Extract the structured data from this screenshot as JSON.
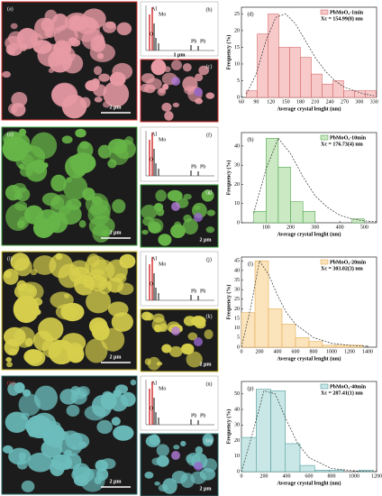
{
  "panels": [
    {
      "image_label": "(a)",
      "image_scale": "2 μm",
      "eds_label": "(b)",
      "eds_peaks": [
        "Al",
        "Mo",
        "O",
        "Pb",
        "Pb"
      ],
      "inset_label": "(c)",
      "inset_scale": "1 μm"
    },
    {
      "image_label": "(e)",
      "image_scale": "2 μm",
      "eds_label": "(f)",
      "eds_peaks": [
        "Al",
        "Mo",
        "O",
        "Pb",
        "Pb"
      ],
      "inset_label": "(g)",
      "inset_scale": "2 μm"
    },
    {
      "image_label": "(i)",
      "image_scale": "2 μm",
      "eds_label": "(j)",
      "eds_peaks": [
        "Al",
        "Mo",
        "O",
        "Pb",
        "Pb"
      ],
      "inset_label": "(k)",
      "inset_scale": "2 μm"
    },
    {
      "image_label": "(m)",
      "image_scale": "2 μm",
      "eds_label": "(n)",
      "eds_peaks": [
        "Al",
        "Mo",
        "O",
        "Pb",
        "Pb"
      ],
      "inset_label": "(o)",
      "inset_scale": "2 μm"
    }
  ],
  "chart_data": [
    {
      "type": "histogram",
      "label": "(d)",
      "x_label": "Average crystal lenght (nm)",
      "y_label": "Frequency (%)",
      "bins": [
        70,
        92,
        114,
        136,
        158,
        180,
        202,
        224,
        246,
        268,
        290,
        312,
        334
      ],
      "series": [
        {
          "name": "PbMoO₄-1min",
          "color": "#f7c9c9",
          "edge": "#d05a5a",
          "values": [
            2,
            19,
            25,
            15,
            15,
            12,
            7,
            4,
            5,
            2,
            2,
            2
          ]
        }
      ],
      "annotation": "Xc = 154.99(8) nm",
      "fit": {
        "x": [
          70,
          90,
          110,
          130,
          150,
          170,
          190,
          210,
          230,
          250,
          270,
          290,
          310,
          330
        ],
        "y": [
          1,
          7,
          17,
          24,
          25,
          22,
          17,
          12,
          8,
          5,
          3,
          2,
          1,
          0.5
        ]
      },
      "xlim": [
        60,
        335
      ],
      "xticks": [
        60,
        90,
        120,
        150,
        180,
        210,
        240,
        270,
        300,
        330
      ],
      "ylim": [
        0,
        27
      ],
      "yticks": [
        0,
        5,
        10,
        15,
        20,
        25
      ]
    },
    {
      "type": "histogram",
      "label": "(h)",
      "x_label": "Average crystal lenght (nm)",
      "y_label": "Frequency (%)",
      "bins": [
        50,
        100,
        150,
        200,
        250,
        300,
        350,
        400,
        450,
        500
      ],
      "series": [
        {
          "name": "PbMoO₄-10min",
          "color": "#cbe9c3",
          "edge": "#3a9a3a",
          "values": [
            6,
            44,
            29,
            11,
            6,
            0,
            0,
            0,
            2
          ]
        }
      ],
      "annotation": "Xc = 176.73(4) nm",
      "fit": {
        "x": [
          50,
          100,
          150,
          200,
          250,
          300,
          350,
          400,
          450,
          500,
          550
        ],
        "y": [
          5,
          28,
          44,
          36,
          24,
          14,
          8,
          4,
          2,
          1,
          0.5
        ]
      },
      "xlim": [
        0,
        550
      ],
      "xticks": [
        100,
        200,
        300,
        400,
        500
      ],
      "ylim": [
        0,
        47
      ],
      "yticks": [
        0,
        10,
        20,
        30,
        40
      ]
    },
    {
      "type": "histogram",
      "label": "(l)",
      "x_label": "Average crystal lenght (nm)",
      "y_label": "Frequency (%)",
      "bins": [
        0,
        150,
        300,
        450,
        600,
        750,
        900,
        1050,
        1200,
        1350
      ],
      "series": [
        {
          "name": "PbMoO₄-20min",
          "color": "#fbe4bb",
          "edge": "#e0a040",
          "values": [
            18,
            45,
            20,
            12,
            5,
            3,
            1,
            1,
            1
          ]
        }
      ],
      "annotation": "Xc = 303.02(3) nm",
      "fit": {
        "x": [
          0,
          100,
          200,
          300,
          400,
          500,
          600,
          800,
          1000,
          1200,
          1400
        ],
        "y": [
          0,
          20,
          45,
          38,
          27,
          18,
          12,
          5,
          2,
          1,
          0.5
        ]
      },
      "xlim": [
        0,
        1500
      ],
      "xticks": [
        0,
        200,
        400,
        600,
        800,
        1000,
        1200,
        1400
      ],
      "ylim": [
        0,
        47
      ],
      "yticks": [
        0,
        5,
        10,
        15,
        20,
        25,
        30,
        35,
        40,
        45
      ]
    },
    {
      "type": "histogram",
      "label": "(p)",
      "x_label": "Average crystal lenght (nm)",
      "y_label": "Frequency (%)",
      "bins": [
        0,
        130,
        260,
        390,
        520,
        650,
        780,
        910,
        1040,
        1170
      ],
      "series": [
        {
          "name": "PbMoO₄-40min",
          "color": "#c9e7e7",
          "edge": "#3a8a8a",
          "values": [
            22,
            53,
            52,
            18,
            4,
            1,
            1,
            0,
            1
          ]
        }
      ],
      "annotation": "Xc = 287.41(1) nm",
      "fit": {
        "x": [
          0,
          100,
          200,
          300,
          400,
          500,
          600,
          800,
          1000,
          1200
        ],
        "y": [
          0,
          25,
          52,
          50,
          33,
          18,
          9,
          2,
          0.5,
          0
        ]
      },
      "xlim": [
        0,
        1200
      ],
      "xticks": [
        0,
        200,
        400,
        600,
        800,
        1000,
        1200
      ],
      "ylim": [
        0,
        58
      ],
      "yticks": [
        0,
        10,
        20,
        30,
        40,
        50
      ]
    }
  ]
}
